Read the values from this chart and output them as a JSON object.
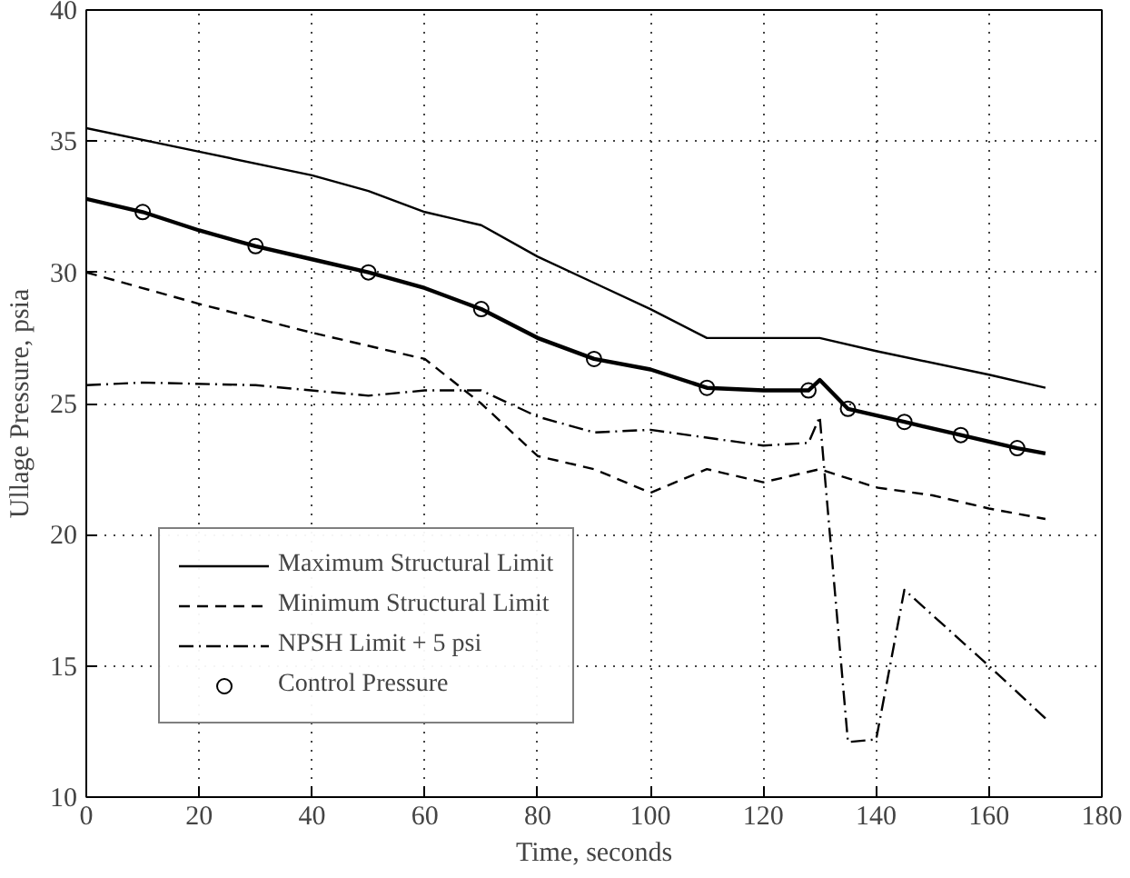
{
  "chart_data": {
    "type": "line",
    "xlabel": "Time, seconds",
    "ylabel": "Ullage Pressure, psia",
    "xlim": [
      0,
      180
    ],
    "ylim": [
      10,
      40
    ],
    "xticks": [
      0,
      20,
      40,
      60,
      80,
      100,
      120,
      140,
      160,
      180
    ],
    "yticks": [
      10,
      15,
      20,
      25,
      30,
      35,
      40
    ],
    "grid": true,
    "legend": "bottom left",
    "series": [
      {
        "name": "Maximum Structural Limit",
        "color": "#000000",
        "line_style": "solid",
        "marker": "none",
        "x": [
          0,
          20,
          40,
          50,
          60,
          70,
          80,
          90,
          100,
          110,
          130,
          140,
          160,
          170
        ],
        "values": [
          35.5,
          34.6,
          33.7,
          33.1,
          32.3,
          31.8,
          30.6,
          29.6,
          28.6,
          27.5,
          27.5,
          27.0,
          26.1,
          25.6
        ]
      },
      {
        "name": "Minimum Structural Limit",
        "color": "#000000",
        "line_style": "dashed",
        "marker": "none",
        "x": [
          0,
          20,
          40,
          60,
          70,
          80,
          90,
          100,
          110,
          120,
          130,
          140,
          150,
          160,
          170
        ],
        "values": [
          30.0,
          28.8,
          27.7,
          26.7,
          25.0,
          23.0,
          22.5,
          21.6,
          22.5,
          22.0,
          22.5,
          21.8,
          21.5,
          21.0,
          20.6
        ]
      },
      {
        "name": "NPSH Limit + 5 psi",
        "color": "#000000",
        "line_style": "dashdot",
        "marker": "none",
        "x": [
          0,
          10,
          30,
          50,
          60,
          70,
          80,
          90,
          100,
          110,
          120,
          128,
          130,
          131,
          135,
          140,
          145,
          160,
          170
        ],
        "values": [
          25.7,
          25.8,
          25.7,
          25.3,
          25.5,
          25.5,
          24.5,
          23.9,
          24.0,
          23.7,
          23.4,
          23.5,
          24.5,
          22.0,
          12.1,
          12.2,
          17.9,
          15.0,
          13.0
        ]
      },
      {
        "type": "line",
        "color": "#000000",
        "line_style": "solid",
        "marker": "none",
        "x": [
          0,
          10,
          20,
          30,
          40,
          50,
          60,
          70,
          80,
          90,
          100,
          110,
          120,
          128,
          130,
          135,
          145,
          155,
          165,
          170
        ],
        "values": [
          32.8,
          32.3,
          31.6,
          31.0,
          30.5,
          30.0,
          29.4,
          28.6,
          27.5,
          26.7,
          26.3,
          25.6,
          25.5,
          25.5,
          25.9,
          24.8,
          24.3,
          23.8,
          23.3,
          23.1
        ]
      },
      {
        "type": "scatter",
        "name": "Control Pressure",
        "color": "#000000",
        "marker": "circle",
        "x": [
          10,
          30,
          50,
          70,
          90,
          110,
          128,
          135,
          145,
          155,
          165
        ],
        "values": [
          32.3,
          31.0,
          30.0,
          28.6,
          26.7,
          25.6,
          25.5,
          24.8,
          24.3,
          23.8,
          23.3
        ]
      }
    ]
  }
}
